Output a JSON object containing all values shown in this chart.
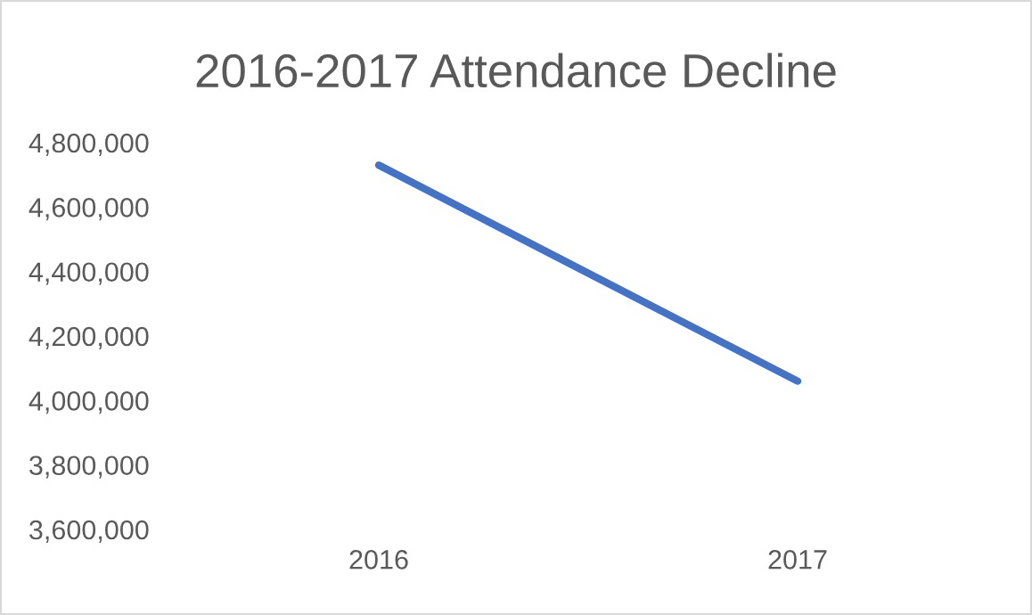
{
  "chart_data": {
    "type": "line",
    "title": "2016-2017 Attendance Decline",
    "categories": [
      "2016",
      "2017"
    ],
    "series": [
      {
        "color": "#4472c4",
        "values": [
          4730000,
          4060000
        ]
      }
    ],
    "ylim": [
      3600000,
      4800000
    ],
    "yticks": [
      {
        "value": 3600000,
        "label": "3,600,000"
      },
      {
        "value": 3800000,
        "label": "3,800,000"
      },
      {
        "value": 4000000,
        "label": "4,000,000"
      },
      {
        "value": 4200000,
        "label": "4,200,000"
      },
      {
        "value": 4400000,
        "label": "4,400,000"
      },
      {
        "value": 4600000,
        "label": "4,600,000"
      },
      {
        "value": 4800000,
        "label": "4,800,000"
      }
    ],
    "grid": false,
    "legend": false,
    "marker": "none",
    "line_style": "solid"
  }
}
